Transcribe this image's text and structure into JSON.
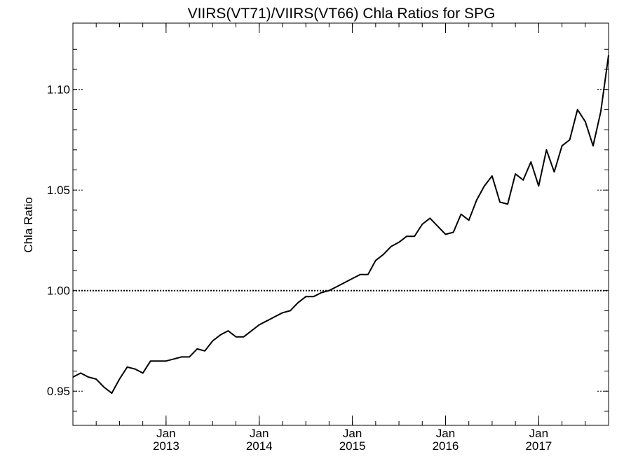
{
  "chart_data": {
    "type": "line",
    "title": "VIIRS(VT71)/VIIRS(VT66)  Chla Ratios for SPG",
    "xlabel": "",
    "ylabel": "Chla Ratio",
    "xlim": [
      "2012-01",
      "2017-10"
    ],
    "ylim": [
      0.933,
      1.133
    ],
    "yticks": [
      {
        "value": 0.95,
        "label": "0.95"
      },
      {
        "value": 1.0,
        "label": "1.00"
      },
      {
        "value": 1.05,
        "label": "1.05"
      },
      {
        "value": 1.1,
        "label": "1.10"
      }
    ],
    "xticks": [
      {
        "value": "2013-01",
        "month": "Jan",
        "year": "2013"
      },
      {
        "value": "2014-01",
        "month": "Jan",
        "year": "2014"
      },
      {
        "value": "2015-01",
        "month": "Jan",
        "year": "2015"
      },
      {
        "value": "2016-01",
        "month": "Jan",
        "year": "2016"
      },
      {
        "value": "2017-01",
        "month": "Jan",
        "year": "2017"
      }
    ],
    "reference_line": {
      "y": 1.0,
      "style": "dotted"
    },
    "grid": false,
    "series": [
      {
        "color": "#000000",
        "x": [
          "2012-01",
          "2012-02",
          "2012-03",
          "2012-04",
          "2012-05",
          "2012-06",
          "2012-07",
          "2012-08",
          "2012-09",
          "2012-10",
          "2012-11",
          "2012-12",
          "2013-01",
          "2013-02",
          "2013-03",
          "2013-04",
          "2013-05",
          "2013-06",
          "2013-07",
          "2013-08",
          "2013-09",
          "2013-10",
          "2013-11",
          "2013-12",
          "2014-01",
          "2014-02",
          "2014-03",
          "2014-04",
          "2014-05",
          "2014-06",
          "2014-07",
          "2014-08",
          "2014-09",
          "2014-10",
          "2014-11",
          "2014-12",
          "2015-01",
          "2015-02",
          "2015-03",
          "2015-04",
          "2015-05",
          "2015-06",
          "2015-07",
          "2015-08",
          "2015-09",
          "2015-10",
          "2015-11",
          "2015-12",
          "2016-01",
          "2016-02",
          "2016-03",
          "2016-04",
          "2016-05",
          "2016-06",
          "2016-07",
          "2016-08",
          "2016-09",
          "2016-10",
          "2016-11",
          "2016-12",
          "2017-01",
          "2017-02",
          "2017-03",
          "2017-04",
          "2017-05",
          "2017-06",
          "2017-07",
          "2017-08",
          "2017-09",
          "2017-10"
        ],
        "values": [
          0.957,
          0.959,
          0.957,
          0.956,
          0.952,
          0.949,
          0.956,
          0.962,
          0.961,
          0.959,
          0.965,
          0.965,
          0.965,
          0.966,
          0.967,
          0.967,
          0.971,
          0.97,
          0.975,
          0.978,
          0.98,
          0.977,
          0.977,
          0.98,
          0.983,
          0.985,
          0.987,
          0.989,
          0.99,
          0.994,
          0.997,
          0.997,
          0.999,
          1.0,
          1.002,
          1.004,
          1.006,
          1.008,
          1.008,
          1.015,
          1.018,
          1.022,
          1.024,
          1.027,
          1.027,
          1.033,
          1.036,
          1.032,
          1.028,
          1.029,
          1.038,
          1.035,
          1.045,
          1.052,
          1.057,
          1.044,
          1.043,
          1.058,
          1.055,
          1.064,
          1.052,
          1.07,
          1.059,
          1.072,
          1.075,
          1.09,
          1.084,
          1.072,
          1.089,
          1.117
        ]
      }
    ]
  }
}
